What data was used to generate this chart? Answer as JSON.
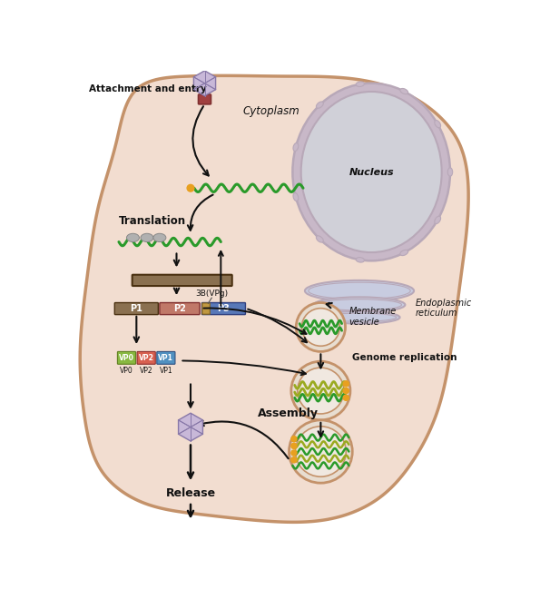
{
  "bg_color": "#f2ddd0",
  "cell_outline_color": "#c4926a",
  "cell_outline_inner": "#d4a882",
  "nucleus_fill": "#d0d0d8",
  "nucleus_outline": "#b8a8b8",
  "nucleus_membrane_fill": "#c8b8c8",
  "er_fill": "#c8cce0",
  "er_outline": "#b8a8b8",
  "green_rna_color": "#2a9a2a",
  "olive_rna_color": "#9aaa20",
  "orange_dot_color": "#e8a020",
  "p1_color": "#8a7050",
  "p2_color": "#c07868",
  "p3_color": "#5878b8",
  "p3_small_color": "#c09840",
  "vp0_color": "#88b840",
  "vp2_color": "#d86050",
  "vp1_color": "#5090c0",
  "virus_fill": "#c8b8d8",
  "virus_outline": "#8878a8",
  "vesicle_outer_fill": "#e8ddd0",
  "vesicle_outer_outline": "#c4926a",
  "vesicle_inner_fill": "#f0e8e0",
  "arrow_color": "#111111",
  "text_color": "#111111",
  "ribosome_color": "#b0b0b0",
  "labels": {
    "attachment": "Attachment and entry",
    "cytoplasm": "Cytoplasm",
    "nucleus": "Nucleus",
    "translation": "Translation",
    "er": "Endoplasmic\nreticulum",
    "membrane_vesicle": "Membrane\nvesicle",
    "genome_replication": "Genome replication",
    "3b_vpg": "3B(VPg)",
    "p1": "P1",
    "p2": "P2",
    "p3": "P3",
    "vp0": "VP0",
    "vp2": "VP2",
    "vp1": "VP1",
    "assembly": "Assembly",
    "release": "Release"
  },
  "figsize": [
    5.95,
    6.49
  ],
  "dpi": 100,
  "xlim": [
    0,
    595
  ],
  "ylim": [
    649,
    0
  ]
}
